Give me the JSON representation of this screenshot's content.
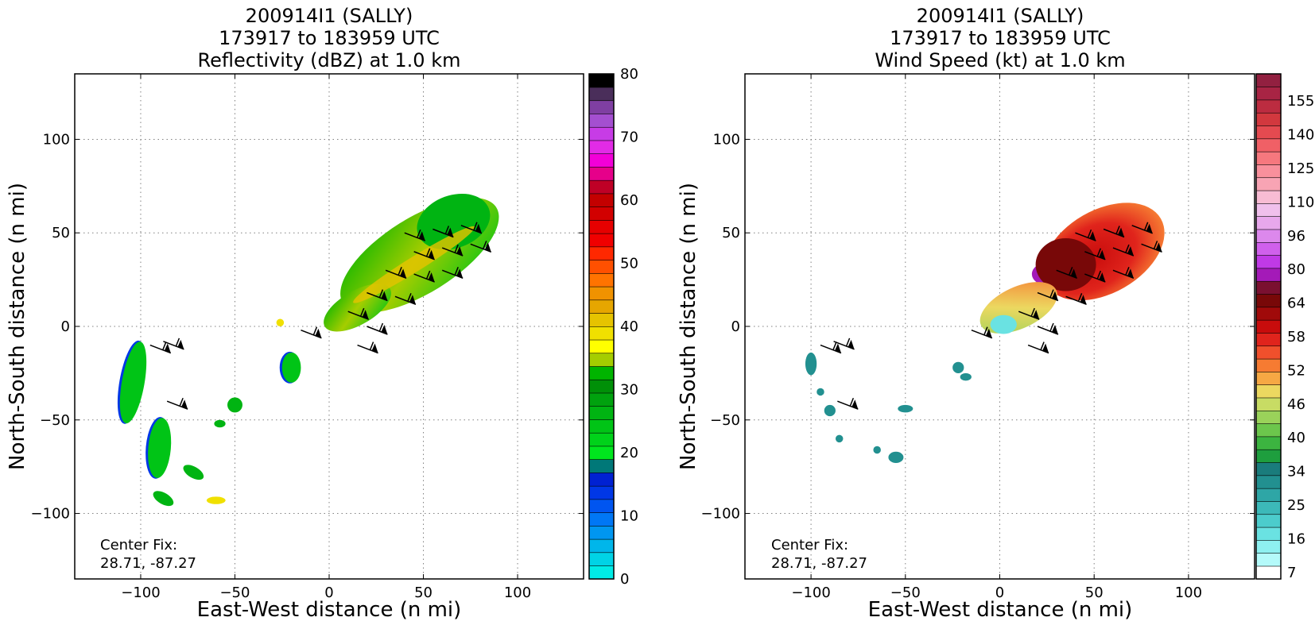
{
  "chart_data": [
    {
      "type": "heatmap",
      "title_lines": [
        "200914I1 (SALLY)",
        "173917 to 183959 UTC",
        "Reflectivity (dBZ) at 1.0 km"
      ],
      "xlabel": "East-West distance (n mi)",
      "ylabel": "North-South distance (n mi)",
      "xlim": [
        -135,
        135
      ],
      "ylim": [
        -135,
        135
      ],
      "xticks": [
        -100,
        -50,
        0,
        50,
        100
      ],
      "yticks": [
        -100,
        -50,
        0,
        50,
        100
      ],
      "xtick_labels": [
        "−100",
        "−50",
        "0",
        "50",
        "100"
      ],
      "ytick_labels": [
        "−100",
        "−50",
        "0",
        "50",
        "100"
      ],
      "grid": true,
      "center_fix_label": "Center Fix:",
      "center_fix_value": "28.71, -87.27",
      "colorbar": {
        "min": 0,
        "max": 80,
        "tick_values": [
          0,
          10,
          20,
          30,
          40,
          50,
          60,
          70,
          80
        ],
        "tick_labels": [
          "0",
          "10",
          "20",
          "30",
          "40",
          "50",
          "60",
          "70",
          "80"
        ],
        "colors": [
          "#00ebe6",
          "#00d3e6",
          "#00b6ea",
          "#0096f0",
          "#0077f5",
          "#0055f0",
          "#0037e6",
          "#0021d2",
          "#007878",
          "#00e61e",
          "#00d21a",
          "#00c416",
          "#00b412",
          "#00a20e",
          "#009008",
          "#00b400",
          "#a5cd00",
          "#ffff00",
          "#f0e000",
          "#e6c300",
          "#e6a600",
          "#f09200",
          "#ff7300",
          "#ff5000",
          "#ff2800",
          "#f00000",
          "#e60000",
          "#d20000",
          "#c30000",
          "#bf0026",
          "#e6008a",
          "#f200d8",
          "#e22be6",
          "#c73ce6",
          "#a44fd0",
          "#7f3fa2",
          "#4a2e5a",
          "#000000"
        ]
      },
      "echo_clusters": [
        {
          "x": 48,
          "y": 38,
          "rx": 48,
          "ry": 20,
          "angle": -32,
          "level": "green-yellow"
        },
        {
          "x": 66,
          "y": 56,
          "rx": 20,
          "ry": 14,
          "angle": -20,
          "level": "green"
        },
        {
          "x": 15,
          "y": 10,
          "rx": 20,
          "ry": 9,
          "angle": -30,
          "level": "green-yellow"
        },
        {
          "x": -104,
          "y": -30,
          "rx": 6,
          "ry": 22,
          "angle": 10,
          "level": "green-blue"
        },
        {
          "x": -90,
          "y": -65,
          "rx": 6,
          "ry": 16,
          "angle": 5,
          "level": "green-blue"
        },
        {
          "x": -88,
          "y": -92,
          "rx": 6,
          "ry": 3,
          "angle": 30,
          "level": "green"
        },
        {
          "x": -60,
          "y": -93,
          "rx": 5,
          "ry": 2,
          "angle": 0,
          "level": "yellow"
        },
        {
          "x": -20,
          "y": -22,
          "rx": 5,
          "ry": 8,
          "angle": 0,
          "level": "green-blue"
        },
        {
          "x": -50,
          "y": -42,
          "rx": 4,
          "ry": 4,
          "angle": 0,
          "level": "green"
        },
        {
          "x": -72,
          "y": -78,
          "rx": 6,
          "ry": 3,
          "angle": 30,
          "level": "green"
        },
        {
          "x": -58,
          "y": -52,
          "rx": 3,
          "ry": 2,
          "angle": 0,
          "level": "green"
        },
        {
          "x": -26,
          "y": 2,
          "rx": 2,
          "ry": 2,
          "angle": 0,
          "level": "yellow"
        }
      ]
    },
    {
      "type": "heatmap",
      "title_lines": [
        "200914I1 (SALLY)",
        "173917 to 183959 UTC",
        "Wind Speed (kt) at 1.0 km"
      ],
      "xlabel": "East-West distance (n mi)",
      "ylabel": "North-South distance (n mi)",
      "xlim": [
        -135,
        135
      ],
      "ylim": [
        -135,
        135
      ],
      "xticks": [
        -100,
        -50,
        0,
        50,
        100
      ],
      "yticks": [
        -100,
        -50,
        0,
        50,
        100
      ],
      "xtick_labels": [
        "−100",
        "−50",
        "0",
        "50",
        "100"
      ],
      "ytick_labels": [
        "−100",
        "−50",
        "0",
        "50",
        "100"
      ],
      "grid": true,
      "center_fix_label": "Center Fix:",
      "center_fix_value": "28.71, -87.27",
      "colorbar": {
        "tick_labels": [
          "7",
          "16",
          "25",
          "34",
          "40",
          "46",
          "52",
          "58",
          "64",
          "80",
          "96",
          "110",
          "125",
          "140",
          "155"
        ],
        "colors": [
          "#ffffff",
          "#b4fafa",
          "#8ef0f0",
          "#6ae2e2",
          "#4ccccc",
          "#3cb9b9",
          "#2ea6a6",
          "#229090",
          "#1a7c7c",
          "#1e9e3e",
          "#3cb440",
          "#6cc64c",
          "#9ad25a",
          "#c8dc64",
          "#ecd860",
          "#f6a844",
          "#f67b32",
          "#f0502c",
          "#e0241c",
          "#c80c0c",
          "#a00a0a",
          "#780808",
          "#7a1030",
          "#a41ab8",
          "#c03ae6",
          "#d060ec",
          "#dc88ec",
          "#e8a8ec",
          "#f0c0ec",
          "#f8bcd4",
          "#f8a4b4",
          "#f8909c",
          "#f6787e",
          "#f06066",
          "#e44a50",
          "#d2383e",
          "#bc2c40",
          "#a82444",
          "#922040"
        ]
      },
      "wind_clusters": [
        {
          "x": 55,
          "y": 40,
          "rx": 35,
          "ry": 22,
          "angle": -30,
          "level": "red"
        },
        {
          "x": 25,
          "y": 28,
          "rx": 8,
          "ry": 6,
          "angle": 0,
          "level": "purple"
        },
        {
          "x": 35,
          "y": 33,
          "rx": 16,
          "ry": 14,
          "angle": 0,
          "level": "darkred"
        },
        {
          "x": 10,
          "y": 10,
          "rx": 22,
          "ry": 11,
          "angle": -25,
          "level": "yellow-green"
        },
        {
          "x": 2,
          "y": 1,
          "rx": 7,
          "ry": 5,
          "angle": 0,
          "level": "cyan"
        }
      ],
      "outliers": [
        {
          "x": -100,
          "y": -20,
          "rx": 3,
          "ry": 6
        },
        {
          "x": -95,
          "y": -35,
          "rx": 2,
          "ry": 2
        },
        {
          "x": -90,
          "y": -45,
          "rx": 3,
          "ry": 3
        },
        {
          "x": -85,
          "y": -60,
          "rx": 2,
          "ry": 2
        },
        {
          "x": -50,
          "y": -44,
          "rx": 4,
          "ry": 2
        },
        {
          "x": -65,
          "y": -66,
          "rx": 2,
          "ry": 2
        },
        {
          "x": -55,
          "y": -70,
          "rx": 4,
          "ry": 3
        },
        {
          "x": -22,
          "y": -22,
          "rx": 3,
          "ry": 3
        },
        {
          "x": -18,
          "y": -27,
          "rx": 3,
          "ry": 2
        }
      ]
    }
  ]
}
